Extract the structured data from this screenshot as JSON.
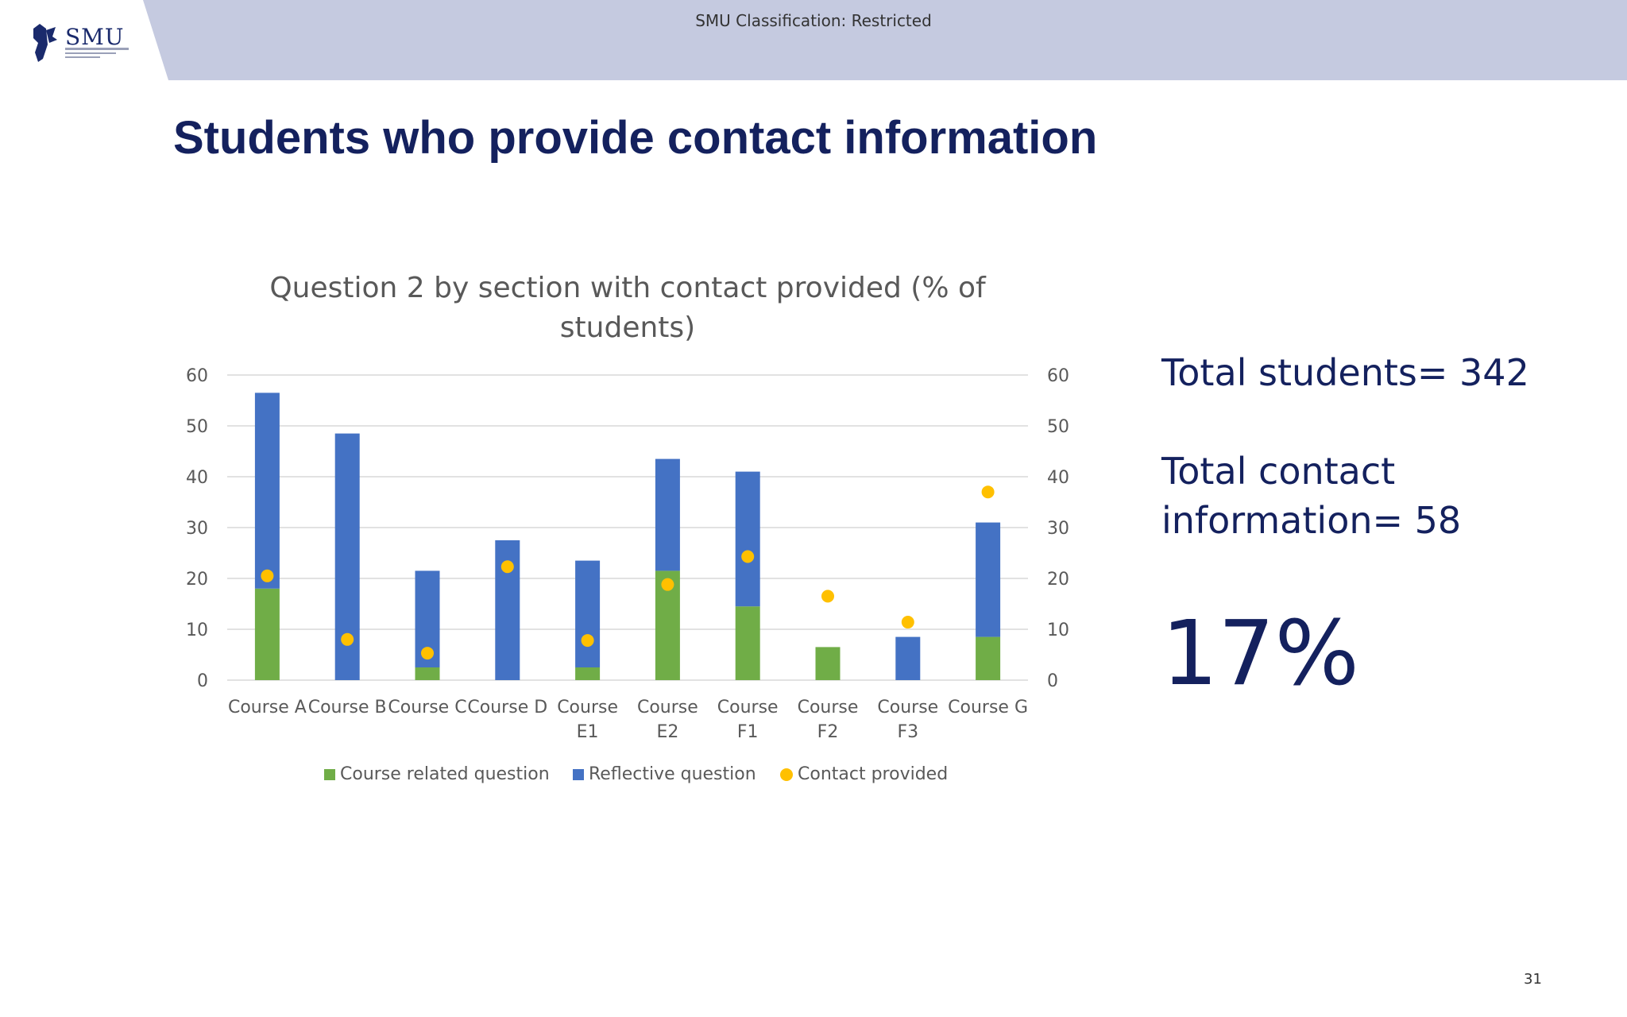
{
  "header": {
    "classification": "SMU Classification: Restricted",
    "logo_text": "SMU",
    "band_color": "#c5cae0"
  },
  "slide": {
    "title": "Students who provide contact information",
    "page_number": "31"
  },
  "stats": {
    "total_students": "Total students= 342",
    "total_contact_line1": "Total contact",
    "total_contact_line2": "information= 58",
    "percentage": "17%"
  },
  "chart_data": {
    "type": "bar",
    "stacked": true,
    "title": "Question 2 by section with contact provided (% of students)",
    "title_line1": "Question 2 by section with contact provided (% of",
    "title_line2": "students)",
    "categories": [
      "Course A",
      "Course B",
      "Course C",
      "Course D",
      "Course E1",
      "Course E2",
      "Course F1",
      "Course F2",
      "Course F3",
      "Course G"
    ],
    "category_lines": [
      [
        "Course A"
      ],
      [
        "Course B"
      ],
      [
        "Course C"
      ],
      [
        "Course D"
      ],
      [
        "Course",
        "E1"
      ],
      [
        "Course",
        "E2"
      ],
      [
        "Course",
        "F1"
      ],
      [
        "Course",
        "F2"
      ],
      [
        "Course",
        "F3"
      ],
      [
        "Course G"
      ]
    ],
    "series": [
      {
        "name": "Course related question",
        "kind": "bar",
        "color": "#70ad47",
        "values": [
          18,
          0,
          2.5,
          0,
          2.5,
          21.5,
          14.5,
          6.5,
          0,
          8.5
        ]
      },
      {
        "name": "Reflective question",
        "kind": "bar",
        "color": "#4472c4",
        "values": [
          38.5,
          48.5,
          19,
          27.5,
          21,
          22,
          26.5,
          0,
          8.5,
          22.5
        ]
      },
      {
        "name": "Contact provided",
        "kind": "scatter",
        "color": "#ffc000",
        "values": [
          20.5,
          8,
          5.3,
          22.3,
          7.8,
          18.8,
          24.3,
          16.5,
          11.4,
          37
        ]
      }
    ],
    "ylim": [
      0,
      60
    ],
    "y_ticks": [
      0,
      10,
      20,
      30,
      40,
      50,
      60
    ],
    "secondary_ylim": [
      0,
      60
    ],
    "grid": true,
    "legend_position": "bottom"
  }
}
